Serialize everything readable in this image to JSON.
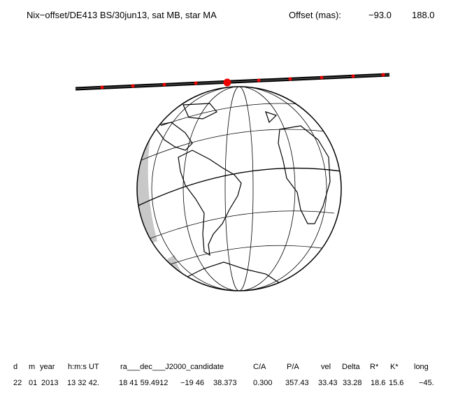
{
  "header": {
    "title": "Nix−offset/DE413 BS/30jun13, sat MB, star MA",
    "offset_label": "Offset (mas):",
    "offset_x": "−93.0",
    "offset_y": "188.0"
  },
  "table": {
    "columns": [
      "d",
      "m",
      "year",
      "h:m:s UT",
      "ra___dec___J2000_candidate",
      "C/A",
      "P/A",
      "vel",
      "Delta",
      "R*",
      "K*",
      "long"
    ],
    "row": [
      "22",
      "01",
      "2013",
      "13 32 42.",
      "18 41 59.4912",
      "−19 46",
      "38.373",
      "0.300",
      "357.43",
      "33.43",
      "33.28",
      "18.6",
      "15.6",
      "−45."
    ]
  }
}
